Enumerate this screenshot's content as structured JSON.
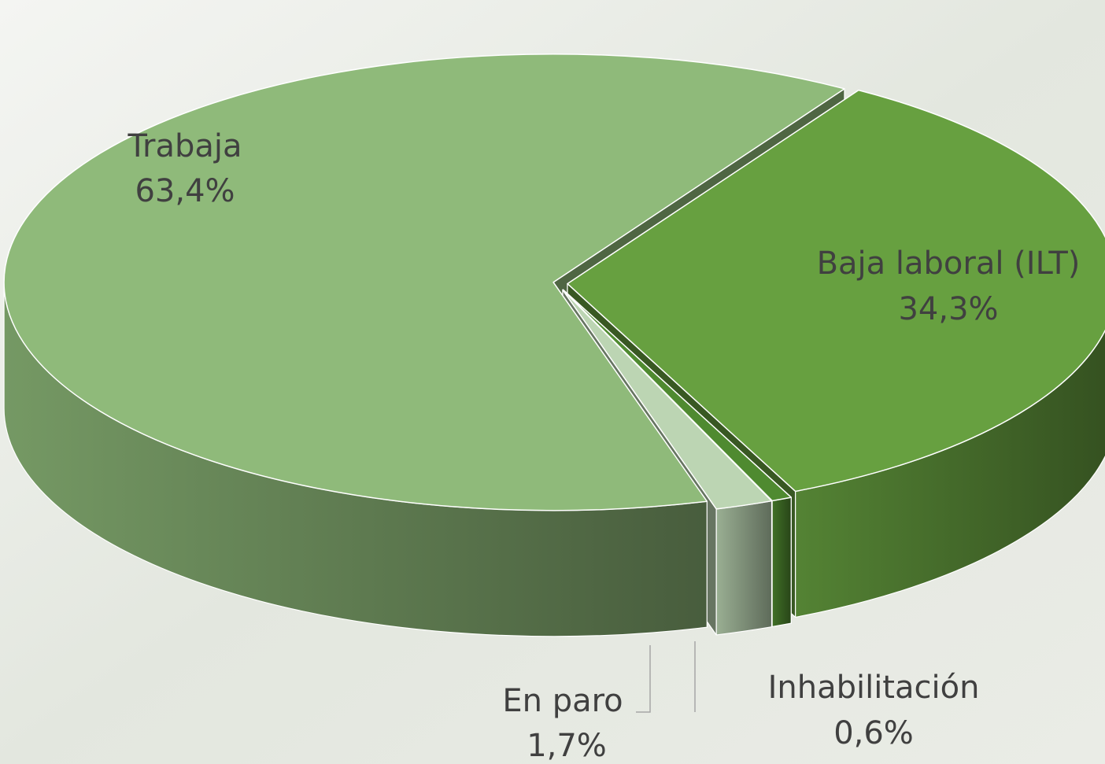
{
  "chart_data": {
    "type": "pie3d",
    "categories": [
      "Baja laboral (ILT)",
      "Inhabilitación",
      "En paro",
      "Trabaja"
    ],
    "values": [
      34.3,
      0.6,
      1.7,
      63.4
    ],
    "value_labels": [
      "34,3%",
      "0,6%",
      "1,7%",
      "63,4%"
    ],
    "colors": [
      "#67a040",
      "#4f8a30",
      "#bcd5b3",
      "#8fba7a"
    ]
  }
}
